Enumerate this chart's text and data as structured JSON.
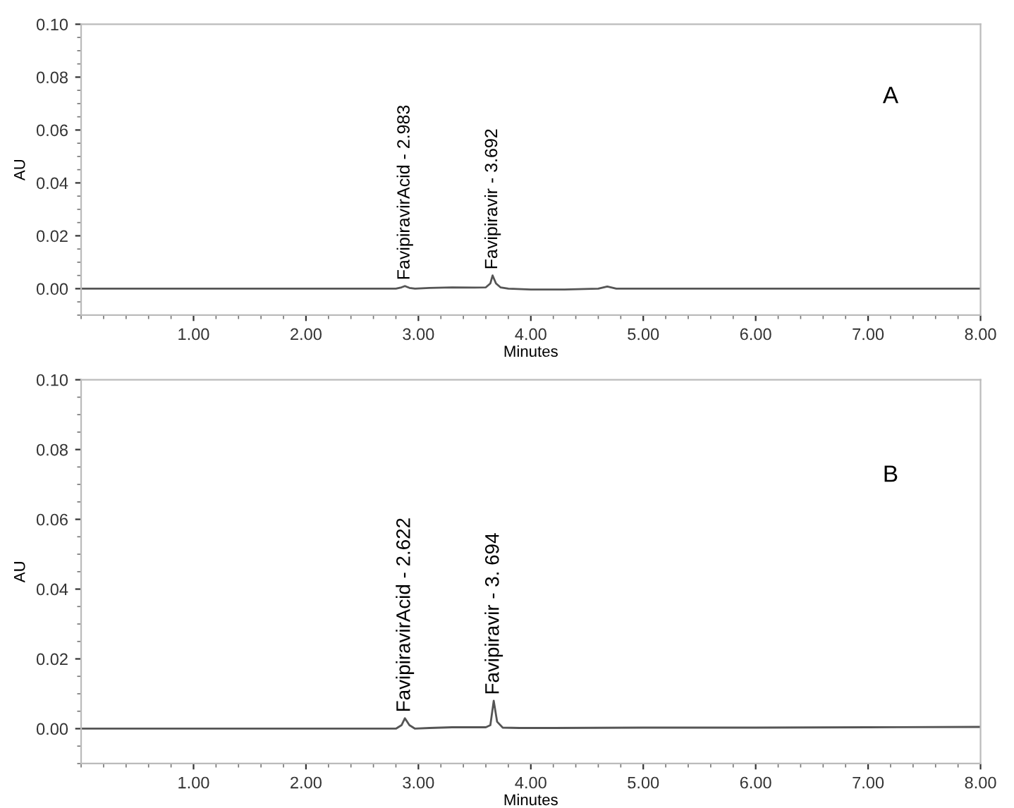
{
  "chart_data": [
    {
      "type": "line",
      "xlabel": "Minutes",
      "ylabel": "AU",
      "x": [
        0,
        0.5,
        1,
        1.5,
        2,
        2.5,
        2.8,
        2.85,
        2.88,
        2.92,
        2.97,
        3.1,
        3.3,
        3.5,
        3.6,
        3.64,
        3.66,
        3.69,
        3.73,
        3.8,
        4.0,
        4.3,
        4.6,
        4.68,
        4.76,
        5,
        5.5,
        6,
        6.5,
        7,
        7.5,
        8
      ],
      "series": [
        {
          "color": "#555555",
          "values": [
            0,
            0,
            0,
            0,
            0,
            0,
            0,
            0.0005,
            0.001,
            0.0003,
            0,
            0.0003,
            0.0005,
            0.0004,
            0.0005,
            0.002,
            0.005,
            0.002,
            0.0005,
            0,
            -0.0003,
            -0.0003,
            0,
            0.0008,
            0,
            0,
            0,
            0,
            0,
            0,
            0,
            0
          ]
        }
      ],
      "xlim": [
        0,
        8
      ],
      "ylim": [
        -0.01,
        0.1
      ],
      "xticks": [
        {
          "value": 1,
          "label": "1.00"
        },
        {
          "value": 2,
          "label": "2.00"
        },
        {
          "value": 3,
          "label": "3.00"
        },
        {
          "value": 4,
          "label": "4.00"
        },
        {
          "value": 5,
          "label": "5.00"
        },
        {
          "value": 6,
          "label": "6.00"
        },
        {
          "value": 7,
          "label": "7.00"
        },
        {
          "value": 8,
          "label": "8.00"
        }
      ],
      "yticks": [
        {
          "value": 0,
          "label": "0.00"
        },
        {
          "value": 0.02,
          "label": "0.02"
        },
        {
          "value": 0.04,
          "label": "0.04"
        },
        {
          "value": 0.06,
          "label": "0.06"
        },
        {
          "value": 0.08,
          "label": "0.08"
        },
        {
          "value": 0.1,
          "label": "0.10"
        }
      ],
      "annotations": [
        {
          "text": "FavipiravirAcid - 2.983",
          "x": 2.88,
          "y": 0.001
        },
        {
          "text": "Favipiravir - 3.692",
          "x": 3.66,
          "y": 0.005
        },
        "A"
      ]
    },
    {
      "type": "line",
      "xlabel": "Minutes",
      "ylabel": "AU",
      "x": [
        0,
        0.5,
        1,
        1.5,
        2,
        2.5,
        2.8,
        2.85,
        2.88,
        2.92,
        2.97,
        3.1,
        3.3,
        3.5,
        3.6,
        3.64,
        3.67,
        3.7,
        3.75,
        3.9,
        4.2,
        5,
        6,
        7,
        8
      ],
      "series": [
        {
          "color": "#555555",
          "values": [
            0,
            0,
            0,
            0,
            0,
            0,
            0,
            0.001,
            0.003,
            0.001,
            0,
            0.0002,
            0.0004,
            0.0004,
            0.0004,
            0.001,
            0.008,
            0.002,
            0.0003,
            0.0002,
            0.0002,
            0.0003,
            0.0003,
            0.0004,
            0.0005
          ]
        }
      ],
      "xlim": [
        0,
        8
      ],
      "ylim": [
        -0.01,
        0.1
      ],
      "xticks": [
        {
          "value": 1,
          "label": "1.00"
        },
        {
          "value": 2,
          "label": "2.00"
        },
        {
          "value": 3,
          "label": "3.00"
        },
        {
          "value": 4,
          "label": "4.00"
        },
        {
          "value": 5,
          "label": "5.00"
        },
        {
          "value": 6,
          "label": "6.00"
        },
        {
          "value": 7,
          "label": "7.00"
        },
        {
          "value": 8,
          "label": "8.00"
        }
      ],
      "yticks": [
        {
          "value": 0,
          "label": "0.00"
        },
        {
          "value": 0.02,
          "label": "0.02"
        },
        {
          "value": 0.04,
          "label": "0.04"
        },
        {
          "value": 0.06,
          "label": "0.06"
        },
        {
          "value": 0.08,
          "label": "0.08"
        },
        {
          "value": 0.1,
          "label": "0.10"
        }
      ],
      "annotations": [
        {
          "text": "FavipiravirAcid - 2.622",
          "x": 2.88,
          "y": 0.003
        },
        {
          "text": "Favipiravir - 3. 694",
          "x": 3.67,
          "y": 0.008
        },
        "B"
      ]
    }
  ]
}
